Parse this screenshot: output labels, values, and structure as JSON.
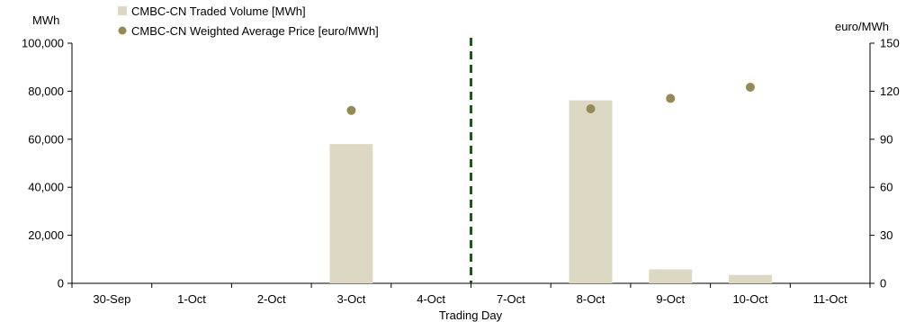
{
  "chart_data": {
    "type": "bar",
    "xlabel": "Trading Day",
    "categories": [
      "30-Sep",
      "1-Oct",
      "2-Oct",
      "3-Oct",
      "4-Oct",
      "7-Oct",
      "8-Oct",
      "9-Oct",
      "10-Oct",
      "11-Oct"
    ],
    "series": [
      {
        "name": "CMBC-CN Traded Volume [MWh]",
        "kind": "bar",
        "axis": "left",
        "color": "#ddd8c4",
        "values": [
          0,
          0,
          0,
          58000,
          0,
          0,
          76200,
          5800,
          3500,
          0
        ]
      },
      {
        "name": "CMBC-CN Weighted Average Price [euro/MWh]",
        "kind": "scatter",
        "axis": "right",
        "color": "#948a54",
        "values": [
          null,
          null,
          null,
          108,
          null,
          null,
          109,
          115.5,
          122.5,
          null
        ]
      }
    ],
    "y_left": {
      "unit": "MWh",
      "range": [
        0,
        100000
      ],
      "ticks": [
        "0",
        "20,000",
        "40,000",
        "60,000",
        "80,000",
        "100,000"
      ],
      "tick_values": [
        0,
        20000,
        40000,
        60000,
        80000,
        100000
      ]
    },
    "y_right": {
      "unit": "euro/MWh",
      "range": [
        0,
        150
      ],
      "ticks": [
        "0",
        "30",
        "60",
        "90",
        "120",
        "150"
      ],
      "tick_values": [
        0,
        30,
        60,
        90,
        120,
        150
      ]
    },
    "divider": {
      "between": [
        "4-Oct",
        "7-Oct"
      ],
      "color": "#1e5a1e",
      "style": "dashed"
    },
    "legend": "top-left",
    "grid": false
  }
}
